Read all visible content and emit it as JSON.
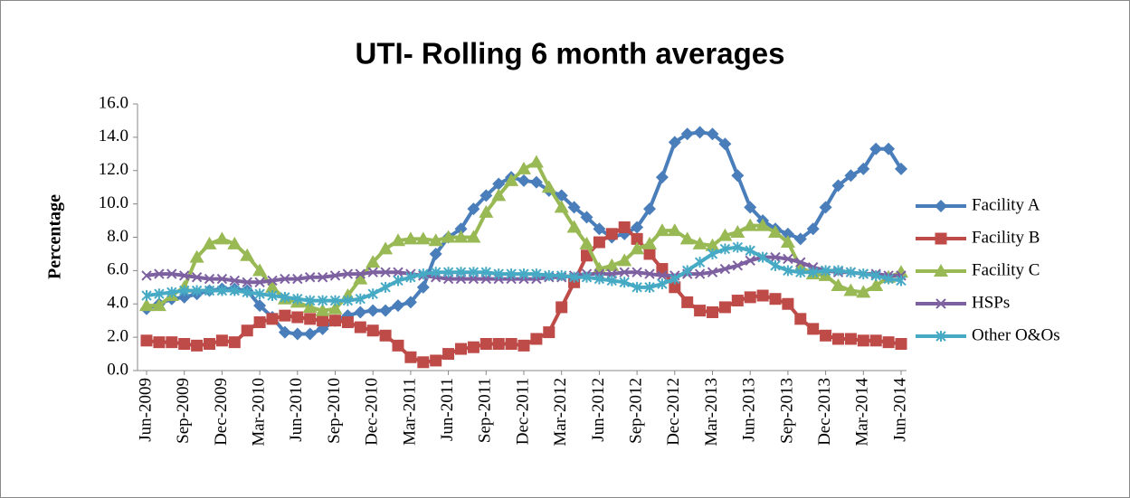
{
  "chart_data": {
    "type": "line",
    "title": "UTI- Rolling 6 month averages",
    "y_label": "Percentage",
    "categories": [
      "Jun-2009",
      null,
      null,
      "Sep-2009",
      null,
      null,
      "Dec-2009",
      null,
      null,
      "Mar-2010",
      null,
      null,
      "Jun-2010",
      null,
      null,
      "Sep-2010",
      null,
      null,
      "Dec-2010",
      null,
      null,
      "Mar-2011",
      null,
      null,
      "Jun-2011",
      null,
      null,
      "Sep-2011",
      null,
      null,
      "Dec-2011",
      null,
      null,
      "Mar-2012",
      null,
      null,
      "Jun-2012",
      null,
      null,
      "Sep-2012",
      null,
      null,
      "Dec-2012",
      null,
      null,
      "Mar-2013",
      null,
      null,
      "Jun-2013",
      null,
      null,
      "Sep-2013",
      null,
      null,
      "Dec-2013",
      null,
      null,
      "Mar-2014",
      null,
      null,
      "Jun-2014"
    ],
    "ylim": [
      0,
      16
    ],
    "yticks": [
      {
        "value": 0,
        "label": "0.0"
      },
      {
        "value": 2,
        "label": "2.0"
      },
      {
        "value": 4,
        "label": "4.0"
      },
      {
        "value": 6,
        "label": "6.0"
      },
      {
        "value": 8,
        "label": "8.0"
      },
      {
        "value": 10,
        "label": "10.0"
      },
      {
        "value": 12,
        "label": "12.0"
      },
      {
        "value": 14,
        "label": "14.0"
      },
      {
        "value": 16,
        "label": "16.0"
      }
    ],
    "grid": false,
    "legend": "right",
    "series": [
      {
        "name": "Facility A",
        "color": "#4a7ebb",
        "marker": "diamond",
        "values": [
          3.7,
          4.0,
          4.3,
          4.4,
          4.6,
          4.8,
          4.9,
          4.9,
          4.8,
          3.9,
          3.2,
          2.3,
          2.2,
          2.2,
          2.5,
          3.0,
          3.3,
          3.5,
          3.6,
          3.6,
          3.9,
          4.1,
          5.0,
          7.0,
          8.0,
          8.5,
          9.7,
          10.5,
          11.2,
          11.6,
          11.4,
          11.3,
          10.8,
          10.5,
          9.8,
          9.2,
          8.5,
          8.0,
          8.2,
          8.6,
          9.7,
          11.6,
          13.7,
          14.2,
          14.3,
          14.2,
          13.6,
          11.7,
          9.8,
          9.0,
          8.5,
          8.2,
          7.9,
          8.5,
          9.8,
          11.1,
          11.7,
          12.1,
          13.3,
          13.3,
          12.1
        ]
      },
      {
        "name": "Facility B",
        "color": "#be4b48",
        "marker": "square",
        "values": [
          1.8,
          1.7,
          1.7,
          1.6,
          1.5,
          1.6,
          1.8,
          1.7,
          2.4,
          2.9,
          3.1,
          3.3,
          3.2,
          3.1,
          3.0,
          3.0,
          2.9,
          2.6,
          2.4,
          2.1,
          1.5,
          0.8,
          0.5,
          0.6,
          1.0,
          1.3,
          1.4,
          1.6,
          1.6,
          1.6,
          1.5,
          1.9,
          2.3,
          3.8,
          5.3,
          6.9,
          7.7,
          8.2,
          8.6,
          7.9,
          7.0,
          6.1,
          5.0,
          4.1,
          3.6,
          3.5,
          3.8,
          4.2,
          4.4,
          4.5,
          4.3,
          4.0,
          3.1,
          2.5,
          2.1,
          1.9,
          1.9,
          1.8,
          1.8,
          1.7,
          1.6
        ]
      },
      {
        "name": "Facility C",
        "color": "#98b954",
        "marker": "triangle",
        "values": [
          3.9,
          3.9,
          4.5,
          5.0,
          6.8,
          7.6,
          7.9,
          7.6,
          6.9,
          6.0,
          5.0,
          4.3,
          4.1,
          3.8,
          3.6,
          3.7,
          4.5,
          5.5,
          6.5,
          7.3,
          7.8,
          7.9,
          7.9,
          7.8,
          8.0,
          8.0,
          8.0,
          9.5,
          10.5,
          11.4,
          12.1,
          12.5,
          11.0,
          9.8,
          8.6,
          7.6,
          6.1,
          6.3,
          6.6,
          7.3,
          7.6,
          8.4,
          8.4,
          7.9,
          7.6,
          7.5,
          8.1,
          8.3,
          8.7,
          8.7,
          8.3,
          7.7,
          6.2,
          5.8,
          5.7,
          5.1,
          4.8,
          4.7,
          5.1,
          5.6,
          5.9
        ]
      },
      {
        "name": "HSPs",
        "color": "#7d60a0",
        "marker": "x",
        "values": [
          5.7,
          5.8,
          5.8,
          5.7,
          5.6,
          5.5,
          5.5,
          5.4,
          5.3,
          5.3,
          5.4,
          5.5,
          5.5,
          5.6,
          5.6,
          5.7,
          5.8,
          5.8,
          5.9,
          5.9,
          5.9,
          5.8,
          5.7,
          5.6,
          5.5,
          5.5,
          5.5,
          5.5,
          5.5,
          5.5,
          5.5,
          5.5,
          5.6,
          5.6,
          5.7,
          5.8,
          5.8,
          5.8,
          5.9,
          5.9,
          5.8,
          5.7,
          5.7,
          5.8,
          5.8,
          5.9,
          6.1,
          6.3,
          6.6,
          6.8,
          6.8,
          6.7,
          6.5,
          6.2,
          6.0,
          5.9,
          5.9,
          5.8,
          5.8,
          5.7,
          5.7
        ]
      },
      {
        "name": "Other O&Os",
        "color": "#46aac5",
        "marker": "star",
        "values": [
          4.5,
          4.6,
          4.7,
          4.8,
          4.8,
          4.8,
          4.8,
          4.8,
          4.7,
          4.6,
          4.5,
          4.4,
          4.3,
          4.2,
          4.2,
          4.2,
          4.2,
          4.3,
          4.6,
          5.0,
          5.4,
          5.6,
          5.8,
          5.9,
          5.9,
          5.9,
          5.9,
          5.9,
          5.8,
          5.8,
          5.8,
          5.8,
          5.7,
          5.7,
          5.6,
          5.6,
          5.5,
          5.4,
          5.3,
          5.0,
          5.0,
          5.2,
          5.5,
          6.0,
          6.5,
          7.0,
          7.3,
          7.4,
          7.2,
          6.8,
          6.3,
          6.0,
          5.9,
          5.9,
          6.0,
          6.0,
          5.9,
          5.8,
          5.7,
          5.5,
          5.4
        ]
      }
    ]
  }
}
